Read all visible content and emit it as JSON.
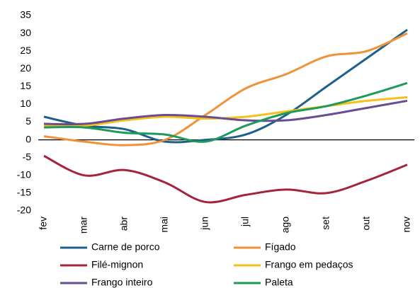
{
  "chart_data": {
    "type": "line",
    "categories": [
      "fev",
      "mar",
      "abr",
      "mai",
      "jun",
      "jul",
      "ago",
      "set",
      "out",
      "nov"
    ],
    "series": [
      {
        "name": "Carne de porco",
        "color": "#1f5f8b",
        "values": [
          6.5,
          4,
          3,
          -0.5,
          0,
          1.5,
          7,
          15,
          23,
          31
        ]
      },
      {
        "name": "Fígado",
        "color": "#f0923a",
        "values": [
          1,
          -0.5,
          -1.5,
          0,
          7,
          14.5,
          18.5,
          23.5,
          25,
          30
        ]
      },
      {
        "name": "Filé-mignon",
        "color": "#a3243b",
        "values": [
          -4.5,
          -10,
          -8.5,
          -12,
          -17.5,
          -15.5,
          -14,
          -15,
          -11.5,
          -7
        ]
      },
      {
        "name": "Frango em pedaços",
        "color": "#f5c018",
        "values": [
          4,
          4,
          5.5,
          6.5,
          6,
          6.5,
          8,
          9.5,
          11,
          12
        ]
      },
      {
        "name": "Frango inteiro",
        "color": "#6a4c93",
        "values": [
          4.5,
          4.5,
          6,
          7,
          6.5,
          5.5,
          5.5,
          7,
          9,
          11
        ]
      },
      {
        "name": "Paleta",
        "color": "#1e9a5a",
        "values": [
          3.5,
          3.5,
          2,
          1.5,
          -0.5,
          4,
          7.5,
          9.5,
          12.5,
          16
        ]
      }
    ],
    "ylim": [
      -20,
      35
    ],
    "yticks": [
      -20,
      -15,
      -10,
      -5,
      0,
      5,
      10,
      15,
      20,
      25,
      30,
      35
    ],
    "grid": false,
    "legend": "bottom"
  }
}
